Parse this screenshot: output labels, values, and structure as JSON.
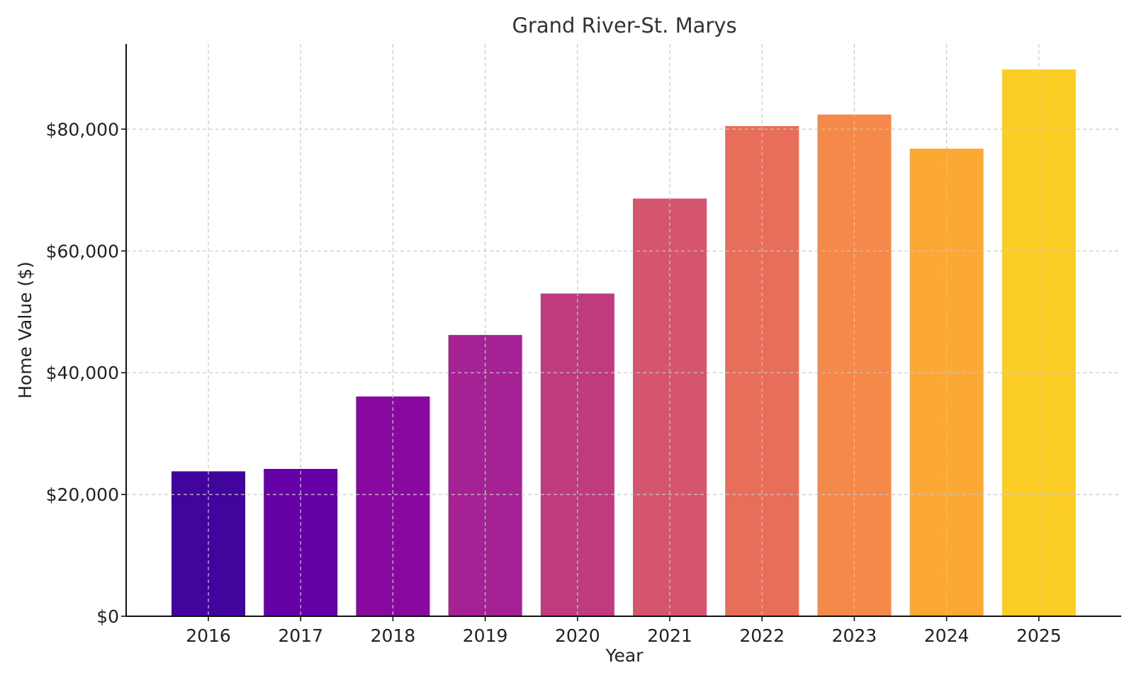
{
  "chart_data": {
    "type": "bar",
    "title": "Grand River-St. Marys",
    "xlabel": "Year",
    "ylabel": "Home Value ($)",
    "categories": [
      "2016",
      "2017",
      "2018",
      "2019",
      "2020",
      "2021",
      "2022",
      "2023",
      "2024",
      "2025"
    ],
    "values": [
      23800,
      24200,
      36100,
      46200,
      53000,
      68600,
      80500,
      82400,
      76800,
      89800
    ],
    "ylim": [
      0,
      94000
    ],
    "yticks": [
      0,
      20000,
      40000,
      60000,
      80000
    ],
    "ytick_labels": [
      "$0",
      "$20,000",
      "$40,000",
      "$60,000",
      "$80,000"
    ],
    "colors": [
      "#41049d",
      "#6a00a8",
      "#8f0da4",
      "#b12a90",
      "#cc4778",
      "#e16462",
      "#f2844b",
      "#fca636",
      "#fcce25",
      "#fcce25"
    ],
    "bar_colors": [
      "#41049d",
      "#6600a7",
      "#8808a0",
      "#a52194",
      "#c03a80",
      "#d5546e",
      "#e76f5a",
      "#f48949",
      "#fca834",
      "#fccd25"
    ],
    "grid": true,
    "legend": "none"
  }
}
